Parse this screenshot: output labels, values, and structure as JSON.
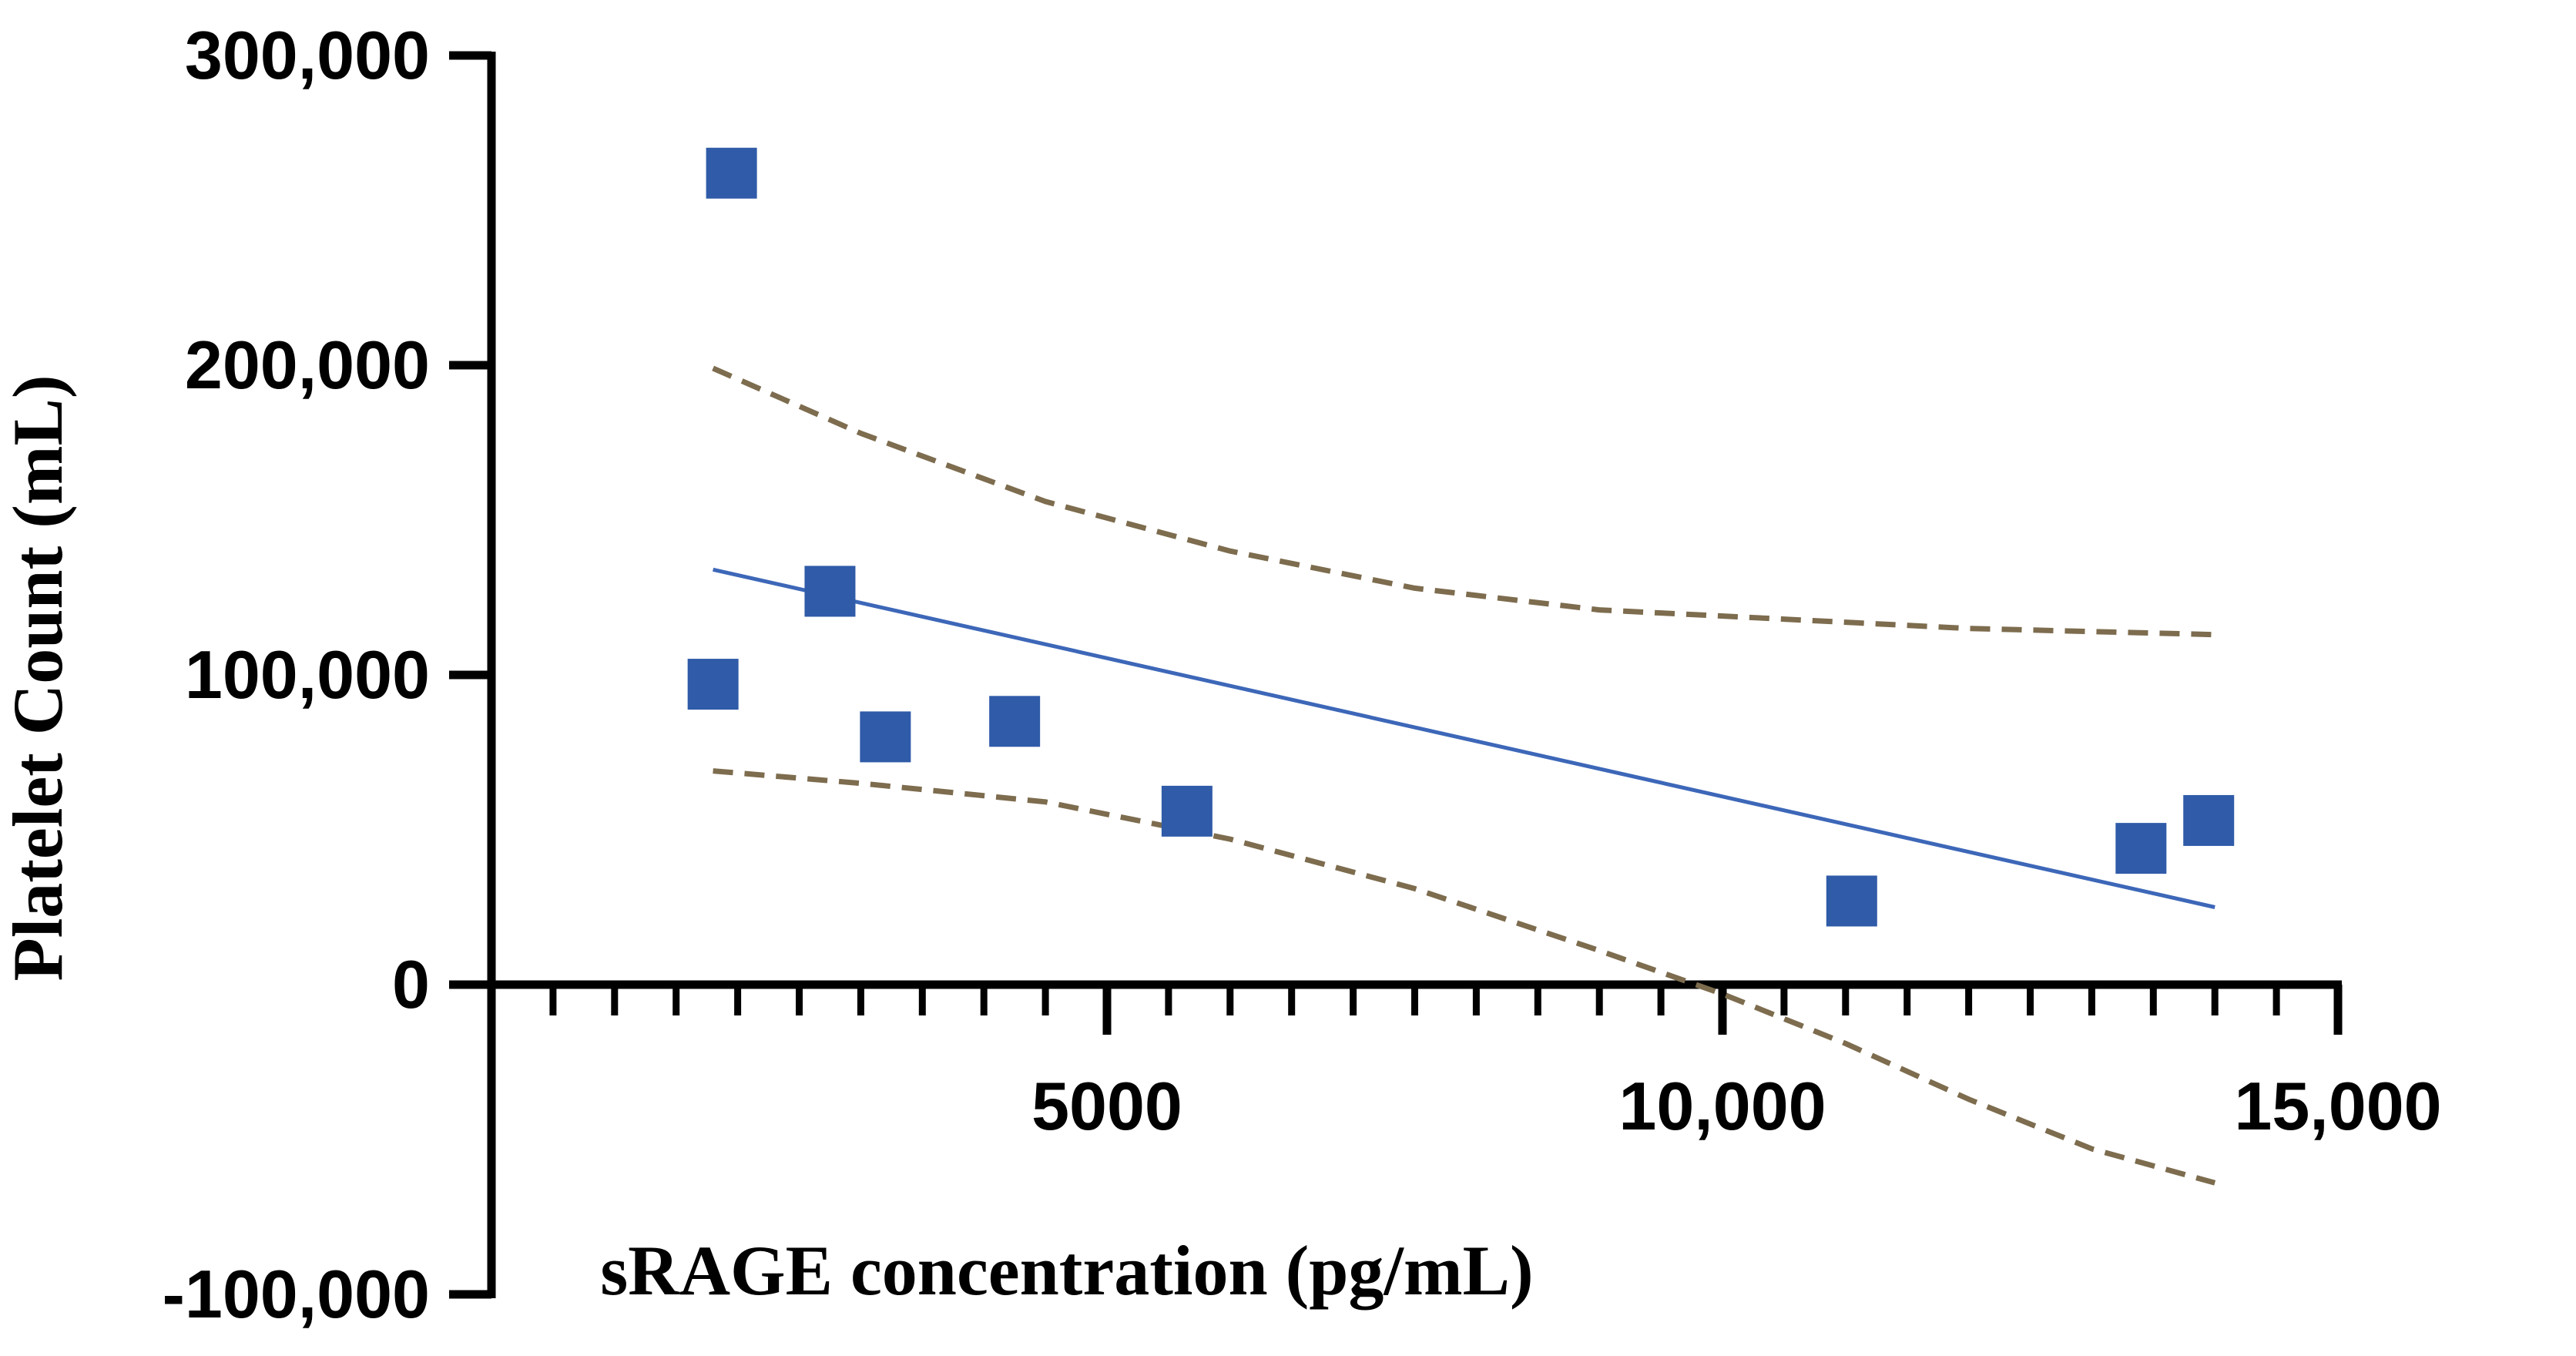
{
  "chart_data": {
    "type": "scatter",
    "title": "",
    "xlabel": "sRAGE concentration (pg/mL)",
    "ylabel": "Platelet Count (mL)",
    "xlim": [
      0,
      15000
    ],
    "ylim": [
      -100000,
      300000
    ],
    "x_ticks": [
      5000,
      10000,
      15000
    ],
    "x_tick_labels": [
      "5000",
      "10,000",
      "15,000"
    ],
    "x_minor_ticks": [
      500,
      1000,
      1500,
      2000,
      2500,
      3000,
      3500,
      4000,
      4500,
      5000,
      5500,
      6000,
      6500,
      7000,
      7500,
      8000,
      8500,
      9000,
      9500,
      10000,
      10500,
      11000,
      11500,
      12000,
      12500,
      13000,
      13500,
      14000,
      14500,
      15000
    ],
    "y_ticks": [
      -100000,
      0,
      100000,
      200000,
      300000
    ],
    "y_tick_labels": [
      "-100,000",
      "0",
      "100,000",
      "200,000",
      "300,000"
    ],
    "grid": false,
    "legend": "none",
    "series": [
      {
        "kind": "points",
        "marker": "square",
        "color": "#2f5ba8",
        "x": [
          1800,
          1950,
          2750,
          3200,
          4250,
          5650,
          11050,
          13400,
          13950
        ],
        "y": [
          97000,
          262000,
          127000,
          80000,
          85000,
          56000,
          27000,
          44000,
          53000
        ]
      },
      {
        "kind": "regression-line",
        "color": "#3d67b8",
        "x": [
          1800,
          14000
        ],
        "y": [
          134000,
          25000
        ]
      },
      {
        "kind": "confidence-band-upper",
        "color": "#7d6c4e",
        "dashed": true,
        "x": [
          1800,
          3000,
          4500,
          6000,
          7500,
          9000,
          10500,
          12000,
          13000,
          14000
        ],
        "y": [
          199000,
          178000,
          156000,
          140000,
          128000,
          121000,
          118000,
          115000,
          114000,
          113000
        ]
      },
      {
        "kind": "confidence-band-lower",
        "color": "#7d6c4e",
        "dashed": true,
        "x": [
          1800,
          3000,
          4500,
          6000,
          7500,
          9000,
          10000,
          11000,
          12000,
          13000,
          14000
        ],
        "y": [
          69000,
          65000,
          59000,
          47000,
          31000,
          11000,
          -3000,
          -19000,
          -37000,
          -53000,
          -64000
        ]
      }
    ]
  }
}
